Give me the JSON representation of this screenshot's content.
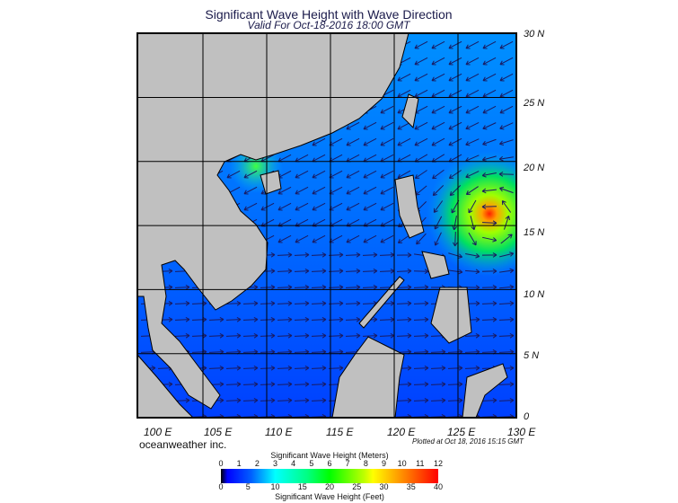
{
  "title": "Significant Wave Height with Wave Direction",
  "subtitle": "Valid For Oct-18-2016 18:00 GMT",
  "lon_labels": [
    "100 E",
    "105 E",
    "110 E",
    "115 E",
    "120 E",
    "125 E",
    "130 E"
  ],
  "lat_labels": [
    "30 N",
    "25 N",
    "20 N",
    "15 N",
    "10 N",
    "5 N",
    "0"
  ],
  "credit": "oceanweather inc.",
  "plotted": "Plotted at Oct 18, 2016 15:15 GMT",
  "colorbar": {
    "meters_title": "Significant Wave Height (Meters)",
    "meters_ticks": [
      "0",
      "1",
      "2",
      "3",
      "4",
      "5",
      "6",
      "7",
      "8",
      "9",
      "10",
      "11",
      "12"
    ],
    "feet_ticks": [
      "0",
      "5",
      "10",
      "15",
      "20",
      "25",
      "30",
      "35",
      "40"
    ],
    "feet_title": "Significant Wave Height (Feet)"
  },
  "colors": {
    "land": "#c0c0c0",
    "ocean_low": "#0040ff",
    "ocean_mid": "#00a0ff",
    "peak": "#ff2000",
    "arrow": "#1a1a60"
  }
}
